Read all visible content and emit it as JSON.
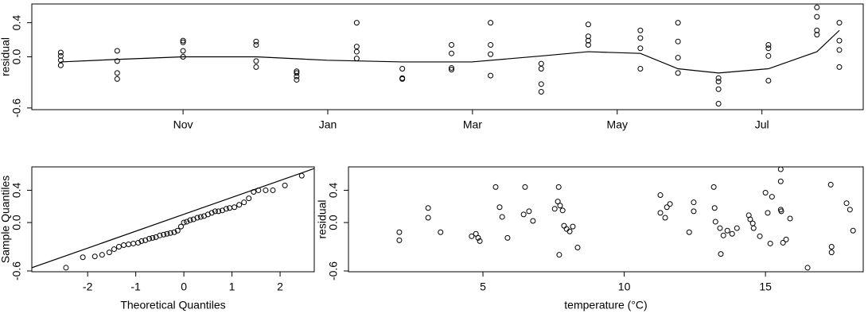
{
  "chart_data": [
    {
      "type": "scatter",
      "ylabel": "residual",
      "xlim": [
        -1.09,
        10.4
      ],
      "ylim": [
        -0.62,
        0.62
      ],
      "xticks": [
        {
          "value": 1,
          "label": "Nov"
        },
        {
          "value": 3,
          "label": "Jan"
        },
        {
          "value": 5,
          "label": "Mar"
        },
        {
          "value": 7,
          "label": "May"
        },
        {
          "value": 9,
          "label": "Jul"
        }
      ],
      "yticks": [
        -0.6,
        {
          "value": 0,
          "label": "0.0"
        },
        0.4
      ],
      "x": [
        -0.69,
        -0.69,
        -0.69,
        -0.69,
        0.09,
        0.09,
        0.09,
        0.09,
        1,
        1,
        1,
        1,
        2.01,
        2.01,
        2.01,
        2.01,
        2.57,
        2.57,
        2.57,
        2.57,
        3.4,
        3.4,
        3.4,
        3.4,
        4.03,
        4.03,
        4.03,
        4.71,
        4.71,
        4.71,
        4.71,
        5.25,
        5.25,
        5.25,
        5.25,
        5.95,
        5.95,
        5.95,
        5.95,
        6.6,
        6.6,
        6.6,
        6.6,
        7.32,
        7.32,
        7.32,
        7.32,
        7.84,
        7.84,
        7.84,
        7.84,
        8.4,
        8.4,
        8.4,
        8.4,
        9.09,
        9.09,
        9.09,
        9.09,
        9.76,
        9.76,
        9.76,
        9.76,
        10.07,
        10.07,
        10.07,
        10.07
      ],
      "y": [
        0.05,
        0.01,
        -0.04,
        -0.1,
        0.07,
        -0.05,
        -0.19,
        -0.26,
        0.19,
        0.17,
        0.07,
        0.0,
        0.18,
        0.14,
        -0.05,
        -0.12,
        -0.17,
        -0.19,
        -0.23,
        -0.27,
        0.4,
        0.12,
        0.06,
        -0.02,
        -0.14,
        -0.25,
        -0.26,
        0.14,
        0.04,
        -0.13,
        -0.15,
        0.4,
        0.14,
        0.03,
        -0.22,
        -0.08,
        -0.14,
        -0.32,
        -0.41,
        0.38,
        0.24,
        0.19,
        0.14,
        0.31,
        0.22,
        0.1,
        -0.14,
        0.4,
        0.18,
        -0.01,
        -0.19,
        -0.25,
        -0.29,
        -0.38,
        -0.55,
        0.14,
        0.1,
        0.01,
        -0.28,
        0.58,
        0.47,
        0.31,
        0.26,
        0.4,
        0.19,
        0.08,
        -0.12
      ],
      "line": {
        "x": [
          -0.69,
          0.09,
          1,
          2.01,
          2.99,
          4.03,
          4.99,
          5.95,
          6.6,
          7.32,
          7.84,
          8.4,
          9.09,
          9.76,
          10.07
        ],
        "y": [
          -0.06,
          -0.03,
          0,
          0,
          -0.04,
          -0.06,
          -0.06,
          0.01,
          0.06,
          0.04,
          -0.14,
          -0.19,
          -0.14,
          0.06,
          0.31
        ]
      }
    },
    {
      "type": "scatter",
      "xlabel": "Theoretical Quantiles",
      "ylabel": "Sample Quantiles",
      "xlim": [
        -3.16,
        2.71
      ],
      "ylim": [
        -0.61,
        0.69
      ],
      "xticks": [
        -2,
        -1,
        0,
        1,
        2
      ],
      "yticks": [
        -0.6,
        {
          "value": 0,
          "label": "0.0"
        },
        0.4
      ],
      "x": [
        -2.45,
        -2.1,
        -1.85,
        -1.7,
        -1.55,
        -1.45,
        -1.35,
        -1.25,
        -1.15,
        -1.05,
        -0.95,
        -0.88,
        -0.8,
        -0.72,
        -0.65,
        -0.58,
        -0.5,
        -0.42,
        -0.35,
        -0.28,
        -0.2,
        -0.13,
        -0.06,
        0,
        0.06,
        0.13,
        0.2,
        0.28,
        0.35,
        0.42,
        0.5,
        0.58,
        0.65,
        0.72,
        0.8,
        0.88,
        0.95,
        1.05,
        1.15,
        1.25,
        1.35,
        1.45,
        1.55,
        1.7,
        1.85,
        2.1,
        2.45
      ],
      "y": [
        -0.56,
        -0.43,
        -0.42,
        -0.4,
        -0.37,
        -0.33,
        -0.3,
        -0.28,
        -0.27,
        -0.26,
        -0.25,
        -0.23,
        -0.22,
        -0.2,
        -0.19,
        -0.18,
        -0.16,
        -0.15,
        -0.14,
        -0.13,
        -0.12,
        -0.1,
        -0.05,
        0,
        0.01,
        0.03,
        0.04,
        0.06,
        0.07,
        0.08,
        0.1,
        0.12,
        0.14,
        0.14,
        0.15,
        0.17,
        0.18,
        0.19,
        0.22,
        0.25,
        0.3,
        0.38,
        0.4,
        0.4,
        0.4,
        0.46,
        0.58
      ],
      "line": {
        "x": [
          -3.16,
          2.71
        ],
        "y": [
          -0.56,
          0.67
        ]
      }
    },
    {
      "type": "scatter",
      "xlabel": "temperature (°C)",
      "ylabel": "residual",
      "xlim": [
        0.24,
        18.46
      ],
      "ylim": [
        -0.61,
        0.69
      ],
      "xticks": [
        5,
        10,
        15
      ],
      "yticks": [
        -0.6,
        {
          "value": 0,
          "label": "0.0"
        },
        0.4
      ],
      "x": [
        2.04,
        2.04,
        3.06,
        3.06,
        3.5,
        4.6,
        4.75,
        4.83,
        4.89,
        5.45,
        5.59,
        5.68,
        5.87,
        6.49,
        6.44,
        6.63,
        6.77,
        7.68,
        7.65,
        7.54,
        7.73,
        7.82,
        7.87,
        7.96,
        8.07,
        8.18,
        7.7,
        8.35,
        11.28,
        11.28,
        11.45,
        11.62,
        11.51,
        12.3,
        12.46,
        12.46,
        13.17,
        13.2,
        13.23,
        13.39,
        13.42,
        13.51,
        13.65,
        13.82,
        13.99,
        14.41,
        14.46,
        14.55,
        14.58,
        14.8,
        15.0,
        15.08,
        15.23,
        15.17,
        15.54,
        15.54,
        15.54,
        15.56,
        15.62,
        15.73,
        15.87,
        16.49,
        17.31,
        17.34,
        17.34,
        17.87,
        17.99,
        18.1
      ],
      "y": [
        -0.12,
        -0.22,
        0.18,
        0.06,
        -0.12,
        -0.17,
        -0.14,
        -0.19,
        -0.23,
        0.44,
        0.19,
        0.07,
        -0.19,
        0.44,
        0.1,
        0.14,
        0.02,
        0.44,
        0.26,
        0.17,
        0.21,
        0.15,
        -0.04,
        -0.08,
        -0.11,
        -0.05,
        -0.4,
        -0.31,
        0.34,
        0.12,
        0.06,
        0.23,
        0.19,
        -0.12,
        0.25,
        0.14,
        0.44,
        0.18,
        0.01,
        -0.07,
        -0.39,
        -0.16,
        -0.1,
        -0.14,
        -0.07,
        0.09,
        0.04,
        -0.01,
        -0.07,
        -0.17,
        0.37,
        0.12,
        0.32,
        -0.26,
        0.66,
        0.51,
        0.16,
        0.14,
        -0.25,
        -0.21,
        0.05,
        -0.56,
        0.47,
        -0.3,
        -0.37,
        0.24,
        0.16,
        -0.1
      ]
    }
  ]
}
